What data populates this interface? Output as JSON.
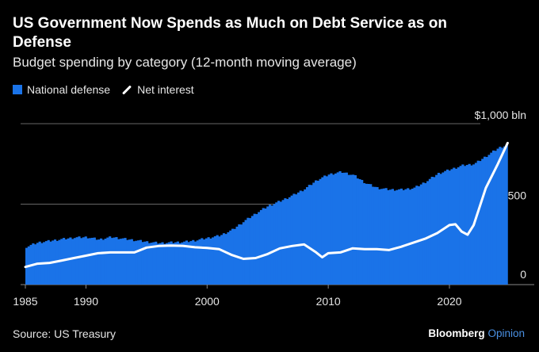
{
  "title": "US Government Now Spends as Much on Debt Service as on Defense",
  "subtitle": "Budget spending by category (12-month moving average)",
  "legend": [
    {
      "label": "National defense",
      "type": "bar"
    },
    {
      "label": "Net interest",
      "type": "line"
    }
  ],
  "source": "Source: US Treasury",
  "brand": {
    "main": "Bloomberg",
    "sub": "Opinion"
  },
  "colors": {
    "defense": "#1a73e8",
    "interest": "#ffffff",
    "grid": "#666666",
    "background": "#000000"
  },
  "chart_data": {
    "type": "area",
    "xlim": [
      1985,
      2027
    ],
    "ylim": [
      0,
      1000
    ],
    "ytick_values": [
      0,
      500,
      1000
    ],
    "ytick_labels": [
      "0",
      "500",
      "$1,000 bln"
    ],
    "xtick_values": [
      1985,
      1990,
      2000,
      2010,
      2020
    ],
    "xtick_labels": [
      "1985",
      "1990",
      "2000",
      "2010",
      "2020"
    ],
    "grid": "horizontal",
    "series": [
      {
        "name": "National defense",
        "type": "bar",
        "x": [
          1985,
          1986,
          1987,
          1988,
          1989,
          1990,
          1991,
          1992,
          1993,
          1994,
          1995,
          1996,
          1997,
          1998,
          1999,
          2000,
          2001,
          2002,
          2003,
          2004,
          2005,
          2006,
          2007,
          2008,
          2009,
          2010,
          2011,
          2012,
          2013,
          2014,
          2015,
          2016,
          2017,
          2018,
          2019,
          2020,
          2021,
          2022,
          2023,
          2024,
          2024.8
        ],
        "values": [
          235,
          262,
          272,
          283,
          292,
          295,
          280,
          295,
          285,
          275,
          265,
          258,
          262,
          265,
          275,
          290,
          305,
          340,
          395,
          445,
          490,
          520,
          555,
          595,
          650,
          685,
          700,
          680,
          630,
          600,
          590,
          590,
          600,
          640,
          690,
          715,
          740,
          750,
          800,
          850,
          870
        ]
      },
      {
        "name": "Net interest",
        "type": "line",
        "x": [
          1985,
          1986,
          1987,
          1988,
          1989,
          1990,
          1991,
          1992,
          1993,
          1994,
          1995,
          1996,
          1997,
          1998,
          1999,
          2000,
          2001,
          2002,
          2003,
          2004,
          2005,
          2006,
          2007,
          2008,
          2009,
          2009.5,
          2010,
          2011,
          2012,
          2013,
          2014,
          2015,
          2016,
          2017,
          2018,
          2019,
          2020,
          2020.5,
          2021,
          2021.5,
          2022,
          2023,
          2024,
          2024.8
        ],
        "values": [
          110,
          130,
          135,
          150,
          165,
          180,
          195,
          200,
          200,
          200,
          230,
          240,
          243,
          241,
          232,
          228,
          220,
          185,
          160,
          165,
          190,
          225,
          240,
          250,
          200,
          170,
          195,
          200,
          225,
          220,
          220,
          215,
          235,
          260,
          285,
          320,
          370,
          375,
          330,
          310,
          370,
          600,
          750,
          880
        ]
      }
    ]
  }
}
